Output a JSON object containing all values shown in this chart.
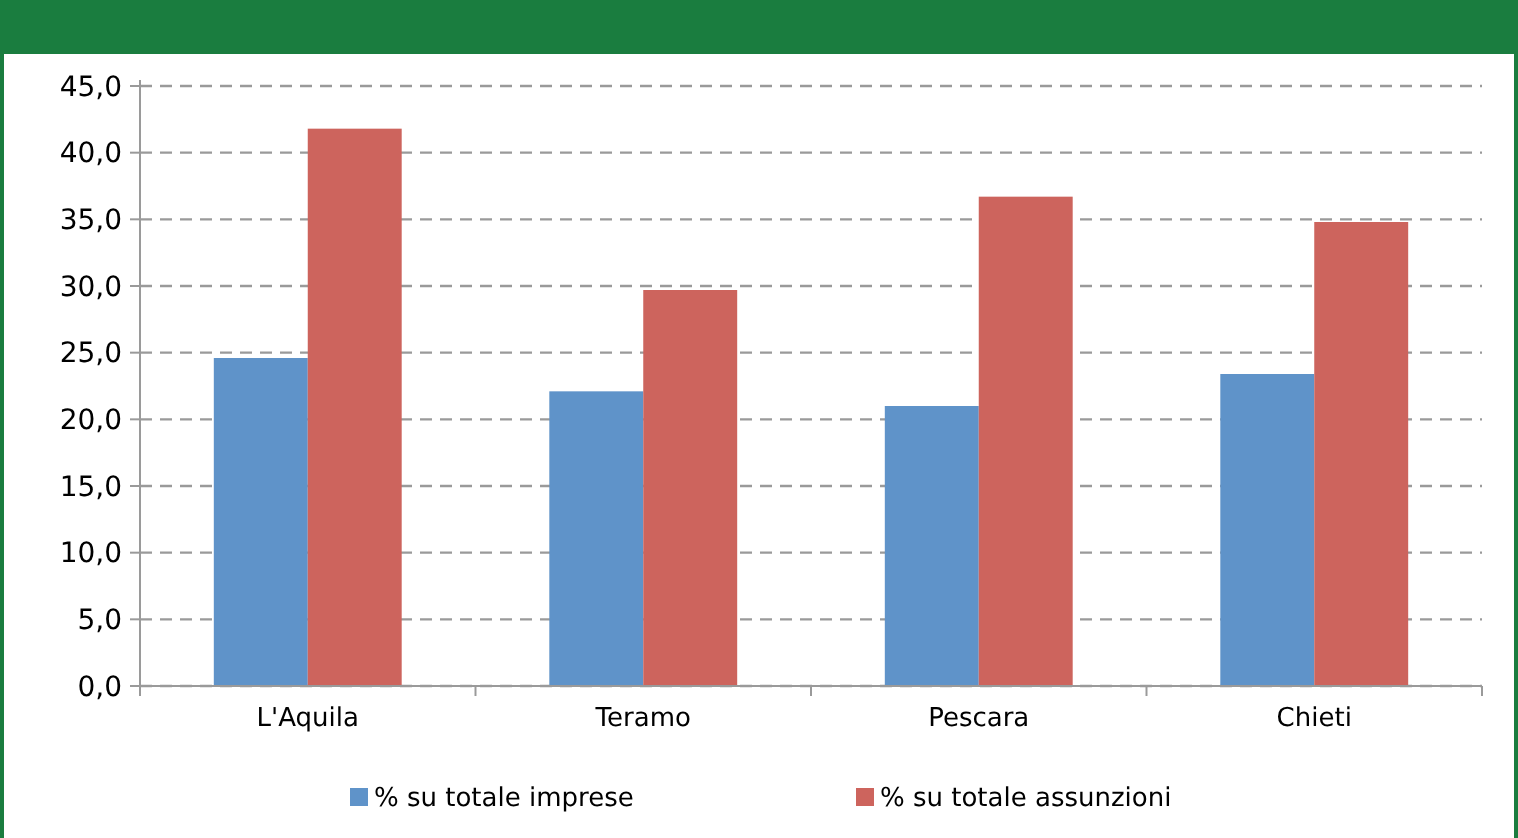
{
  "chart_data": {
    "type": "bar",
    "categories": [
      "L'Aquila",
      "Teramo",
      "Pescara",
      "Chieti"
    ],
    "series": [
      {
        "name": "% su totale imprese",
        "color": "#5f93c9",
        "values": [
          24.6,
          22.1,
          21.0,
          23.4
        ]
      },
      {
        "name": "% su totale assunzioni",
        "color": "#cd645d",
        "values": [
          41.8,
          29.7,
          36.7,
          34.8
        ]
      }
    ],
    "ylim": [
      0,
      45
    ],
    "yticks": [
      {
        "value": 0,
        "label": "0,0"
      },
      {
        "value": 5,
        "label": "5,0"
      },
      {
        "value": 10,
        "label": "10,0"
      },
      {
        "value": 15,
        "label": "15,0"
      },
      {
        "value": 20,
        "label": "20,0"
      },
      {
        "value": 25,
        "label": "25,0"
      },
      {
        "value": 30,
        "label": "30,0"
      },
      {
        "value": 35,
        "label": "35,0"
      },
      {
        "value": 40,
        "label": "40,0"
      },
      {
        "value": 45,
        "label": "45,0"
      }
    ],
    "grid": "y",
    "legend": "bottom"
  }
}
